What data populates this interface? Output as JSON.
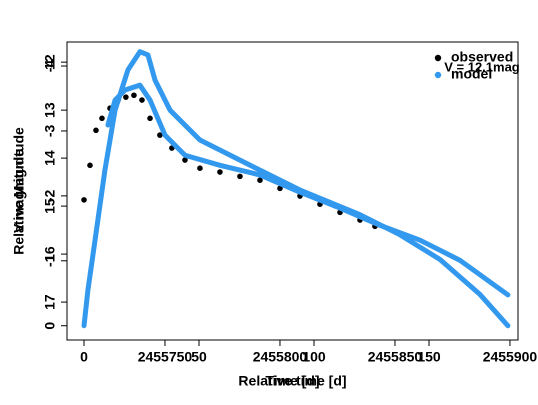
{
  "chart_data": [
    {
      "type": "scatter",
      "xlabel": "Time [d]",
      "ylabel": "V magnitude",
      "xlim": [
        2455707.4,
        2455903.5
      ],
      "xticks": [
        2455750,
        2455800,
        2455850,
        2455900
      ],
      "ylim": [
        17.79,
        11.58
      ],
      "yticks": [
        12,
        13,
        14,
        15,
        16,
        17
      ],
      "legend": "topright",
      "annotation": "V = 12.1mag",
      "series": [
        {
          "name": "observed",
          "color": "#000000",
          "x": [
            2455714.8,
            2455717.4,
            2455720.0,
            2455722.6,
            2455726.1,
            2455729.6,
            2455733.0,
            2455736.5,
            2455740.0,
            2455743.5,
            2455747.8,
            2455753.0,
            2455758.7,
            2455765.2,
            2455773.9,
            2455782.6,
            2455791.3,
            2455800.0,
            2455808.7,
            2455817.4,
            2455826.1,
            2455834.8,
            2455841.3
          ],
          "values": [
            14.87,
            14.15,
            13.42,
            13.17,
            12.96,
            12.79,
            12.73,
            12.69,
            12.79,
            13.17,
            13.52,
            13.79,
            14.04,
            14.21,
            14.29,
            14.38,
            14.46,
            14.63,
            14.79,
            14.96,
            15.13,
            15.29,
            15.42
          ]
        },
        {
          "name": "model",
          "color": "#3399ee",
          "x": [
            2455725.2,
            2455728.3,
            2455732.6,
            2455739.1,
            2455743.5,
            2455750.0,
            2455758.7,
            2455773.9,
            2455791.3,
            2455808.7,
            2455826.1,
            2455843.5,
            2455860.9,
            2455878.3,
            2455899.1
          ],
          "values": [
            13.31,
            12.79,
            12.58,
            12.48,
            12.79,
            13.52,
            13.94,
            14.15,
            14.35,
            14.71,
            15.04,
            15.4,
            15.71,
            16.13,
            16.85
          ]
        }
      ]
    },
    {
      "type": "scatter",
      "xlabel": "Relative time [d]",
      "ylabel": "Relative Magnitude",
      "xlim": [
        -7.4,
        188.7
      ],
      "xticks": [
        0,
        50,
        100,
        150
      ],
      "ylim": [
        0.22,
        -4.37
      ],
      "yticks": [
        0,
        -1,
        -2,
        -3,
        -4
      ],
      "series": [
        {
          "color": "#3399ee",
          "x": [
            0,
            1.7,
            4.8,
            9.1,
            13.5,
            19.1,
            24.3,
            27.8,
            30.9,
            37.4,
            50.4,
            67.8,
            93.9,
            120,
            137.4,
            154.8,
            172.2,
            184.3
          ],
          "values": [
            0,
            -0.55,
            -1.32,
            -2.4,
            -3.32,
            -3.94,
            -4.22,
            -4.17,
            -3.78,
            -3.32,
            -2.86,
            -2.55,
            -2.09,
            -1.71,
            -1.4,
            -1.02,
            -0.48,
            0
          ]
        }
      ]
    }
  ]
}
